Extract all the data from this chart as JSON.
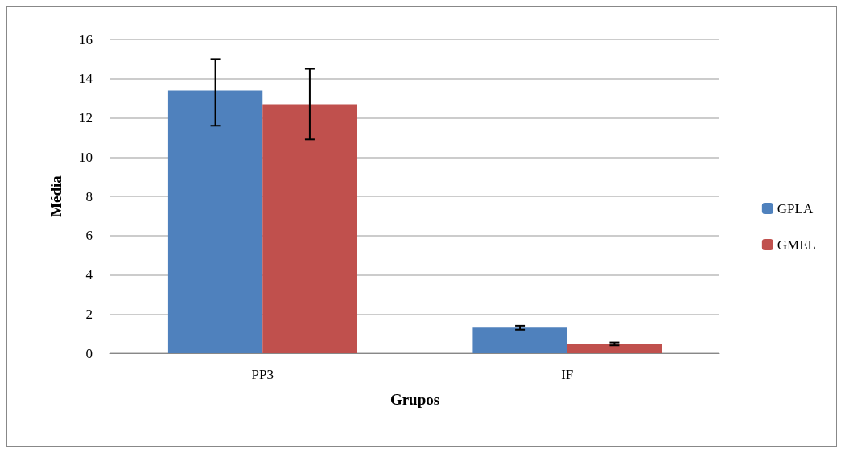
{
  "chart_data": {
    "type": "bar",
    "xlabel": "Grupos",
    "ylabel": "Média",
    "categories": [
      "PP3",
      "IF"
    ],
    "series": [
      {
        "name": "GPLA",
        "color": "#4f81bd",
        "values": [
          13.4,
          1.3
        ],
        "errors": [
          [
            11.6,
            15.0
          ],
          [
            1.2,
            1.4
          ]
        ]
      },
      {
        "name": "GMEL",
        "color": "#c0504d",
        "values": [
          12.7,
          0.47
        ],
        "errors": [
          [
            10.9,
            14.5
          ],
          [
            0.4,
            0.55
          ]
        ]
      }
    ],
    "ylim": [
      0,
      16
    ],
    "yticks": [
      0,
      2,
      4,
      6,
      8,
      10,
      12,
      14,
      16
    ],
    "grid": "y",
    "legend": "right"
  }
}
